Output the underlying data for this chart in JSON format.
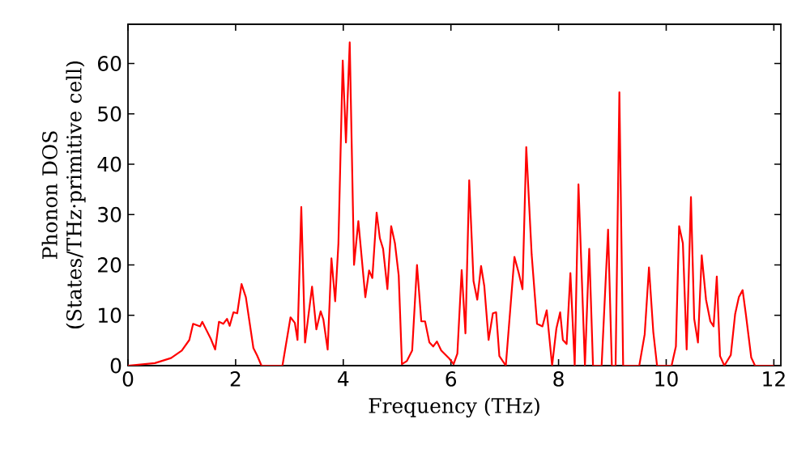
{
  "chart_data": {
    "type": "line",
    "xlabel": "Frequency (THz)",
    "ylabel": "Phonon DOS (States/THz·primitive cell)",
    "xlim": [
      0,
      12.13
    ],
    "ylim": [
      0,
      67.8
    ],
    "xticks": [
      0,
      2,
      4,
      6,
      8,
      10,
      12
    ],
    "yticks": [
      0,
      10,
      20,
      30,
      40,
      50,
      60
    ],
    "grid": false,
    "series": [
      {
        "color": "#ff0000",
        "x": [
          0,
          0.5,
          0.8,
          1.0,
          1.14,
          1.21,
          1.34,
          1.38,
          1.54,
          1.62,
          1.69,
          1.77,
          1.84,
          1.89,
          1.96,
          2.03,
          2.11,
          2.19,
          2.33,
          2.4,
          2.48,
          2.87,
          3.02,
          3.1,
          3.15,
          3.22,
          3.29,
          3.42,
          3.5,
          3.58,
          3.63,
          3.71,
          3.78,
          3.85,
          3.91,
          3.99,
          4.05,
          4.12,
          4.2,
          4.28,
          4.41,
          4.48,
          4.54,
          4.62,
          4.68,
          4.74,
          4.82,
          4.89,
          4.96,
          5.03,
          5.09,
          5.18,
          5.28,
          5.37,
          5.45,
          5.52,
          5.6,
          5.67,
          5.74,
          5.82,
          5.97,
          6.05,
          6.12,
          6.2,
          6.27,
          6.34,
          6.42,
          6.49,
          6.56,
          6.62,
          6.7,
          6.78,
          6.84,
          6.9,
          7.02,
          7.18,
          7.26,
          7.33,
          7.4,
          7.5,
          7.6,
          7.7,
          7.78,
          7.88,
          7.96,
          8.03,
          8.08,
          8.15,
          8.22,
          8.3,
          8.37,
          8.49,
          8.57,
          8.64,
          8.8,
          8.92,
          8.99,
          9.06,
          9.13,
          9.2,
          9.5,
          9.6,
          9.68,
          9.76,
          9.83,
          10.1,
          10.18,
          10.24,
          10.31,
          10.38,
          10.46,
          10.52,
          10.59,
          10.66,
          10.74,
          10.82,
          10.88,
          10.94,
          11.0,
          11.08,
          11.2,
          11.28,
          11.35,
          11.42,
          11.48,
          11.58,
          11.65,
          12.0
        ],
        "values": [
          0,
          0.5,
          1.5,
          3,
          5.1,
          8.3,
          7.8,
          8.7,
          5.3,
          3.2,
          8.7,
          8.3,
          9.3,
          7.9,
          10.6,
          10.4,
          16.2,
          13.6,
          3.5,
          2,
          0,
          0,
          9.6,
          8.5,
          5.1,
          31.5,
          4.6,
          15.7,
          7.2,
          10.8,
          9.2,
          3.2,
          21.3,
          12.8,
          24.3,
          60.6,
          44.3,
          64.2,
          20.0,
          28.7,
          13.6,
          18.9,
          17.4,
          30.4,
          25.3,
          23.2,
          15.2,
          27.7,
          24.3,
          17.9,
          0.3,
          0.9,
          3,
          20,
          8.8,
          8.8,
          4.6,
          3.8,
          4.8,
          3,
          1.4,
          0.3,
          2.4,
          19,
          6.4,
          36.8,
          16.8,
          13.1,
          19.8,
          15.8,
          5.1,
          10.4,
          10.6,
          1.9,
          0,
          21.6,
          18.4,
          15.2,
          43.4,
          22.1,
          8.3,
          7.8,
          11,
          0,
          7.4,
          10.6,
          5.1,
          4.3,
          18.4,
          0,
          36,
          0,
          23.2,
          0,
          0,
          27,
          0,
          0,
          54.3,
          0,
          0,
          6.2,
          19.5,
          6.7,
          0,
          0,
          3.8,
          27.7,
          24.3,
          3.2,
          33.5,
          9.3,
          4.6,
          21.9,
          13.1,
          8.8,
          7.8,
          17.7,
          1.9,
          0,
          2.1,
          10.2,
          13.6,
          15,
          10.2,
          1.6,
          0,
          0
        ]
      }
    ]
  }
}
